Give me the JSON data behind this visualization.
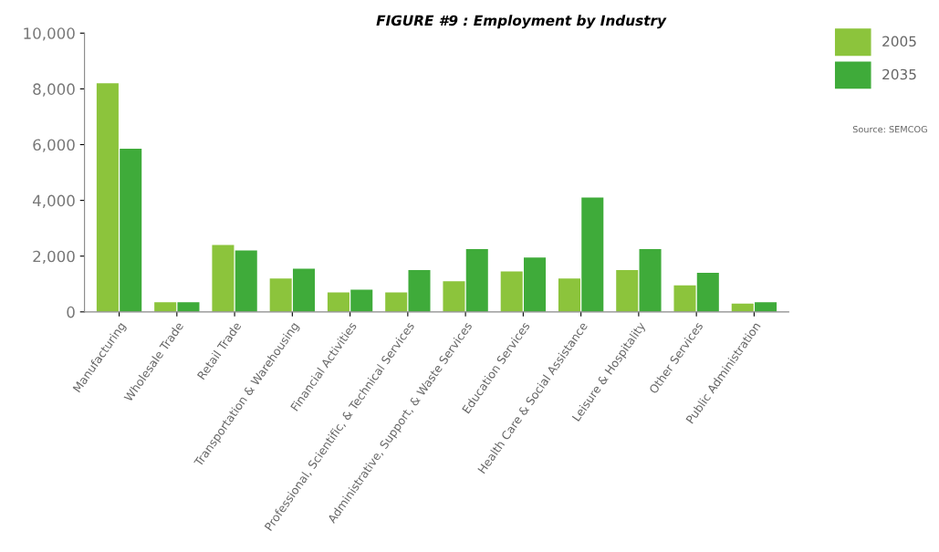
{
  "chart_data": {
    "type": "bar",
    "title": "FIGURE #9 : Employment by Industry",
    "categories": [
      "Manufacturing",
      "Wholesale Trade",
      "Retail Trade",
      "Transportation & Warehousing",
      "Financial Activities",
      "Professional, Scientific, & Technical Services",
      "Administrative, Support, & Waste Services",
      "Education Services",
      "Health Care & Social Assistance",
      "Leisure & Hospitality",
      "Other Services",
      "Public Administration"
    ],
    "series": [
      {
        "name": "2005",
        "color": "#8cc43c",
        "values": [
          8200,
          350,
          2400,
          1200,
          700,
          700,
          1100,
          1450,
          1200,
          1500,
          950,
          300
        ]
      },
      {
        "name": "2035",
        "color": "#3fab3a",
        "values": [
          5850,
          350,
          2200,
          1550,
          800,
          1500,
          2250,
          1950,
          4100,
          2250,
          1400,
          350
        ]
      }
    ],
    "ylim": [
      0,
      10000
    ],
    "yticks": [
      {
        "value": 0,
        "label": "0"
      },
      {
        "value": 2000,
        "label": "2,000"
      },
      {
        "value": 4000,
        "label": "4,000"
      },
      {
        "value": 6000,
        "label": "6,000"
      },
      {
        "value": 8000,
        "label": "8,000"
      },
      {
        "value": 10000,
        "label": "10,000"
      }
    ],
    "grid": false,
    "legend": "top right",
    "annotations": [
      "Source: SEMCOG"
    ]
  }
}
